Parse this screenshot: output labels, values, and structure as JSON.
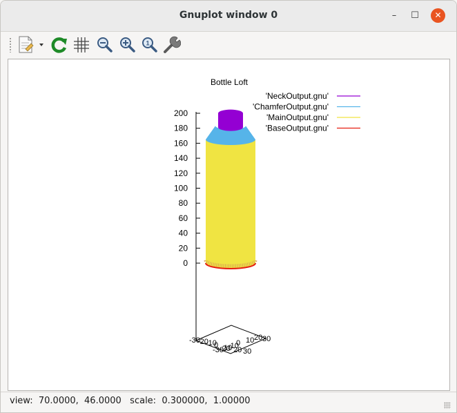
{
  "window": {
    "title": "Gnuplot window 0",
    "controls": {
      "minimize": "–",
      "maximize": "☐",
      "close": "✕"
    }
  },
  "toolbar": {
    "items": [
      {
        "name": "export-button",
        "icon": "document-export-icon"
      },
      {
        "name": "replot-button",
        "icon": "refresh-icon"
      },
      {
        "name": "grid-button",
        "icon": "grid-icon"
      },
      {
        "name": "zoom-out-button",
        "icon": "zoom-out-icon"
      },
      {
        "name": "zoom-in-button",
        "icon": "zoom-in-icon"
      },
      {
        "name": "zoom-fit-button",
        "icon": "zoom-fit-icon"
      },
      {
        "name": "configure-button",
        "icon": "wrench-icon"
      }
    ]
  },
  "status": {
    "text": "view:  70.0000,  46.0000   scale:  0.300000,  1.00000"
  },
  "colors": {
    "neck": "#9400d3",
    "chamfer": "#56b4e9",
    "main": "#f0e442",
    "base": "#e51e10"
  },
  "chart_data": {
    "type": "surface3d",
    "title": "Bottle Loft",
    "zlim": [
      0,
      200
    ],
    "z_ticks": [
      "200",
      "180",
      "160",
      "140",
      "120",
      "100",
      "80",
      "60",
      "40",
      "20",
      "0"
    ],
    "base_tick_labels": [
      "-30",
      "-20",
      "-10",
      "0",
      "10",
      "20",
      "30"
    ],
    "series": [
      {
        "name": "'NeckOutput.gnu'",
        "z_range": [
          185,
          200
        ],
        "color": "#9400d3"
      },
      {
        "name": "'ChamferOutput.gnu'",
        "z_range": [
          165,
          185
        ],
        "color": "#56b4e9"
      },
      {
        "name": "'MainOutput.gnu'",
        "z_range": [
          0,
          165
        ],
        "color": "#f0e442"
      },
      {
        "name": "'BaseOutput.gnu'",
        "z_range": [
          0,
          0
        ],
        "color": "#e51e10"
      }
    ],
    "view": [
      70.0,
      46.0
    ],
    "scale": [
      0.3,
      1.0
    ]
  }
}
